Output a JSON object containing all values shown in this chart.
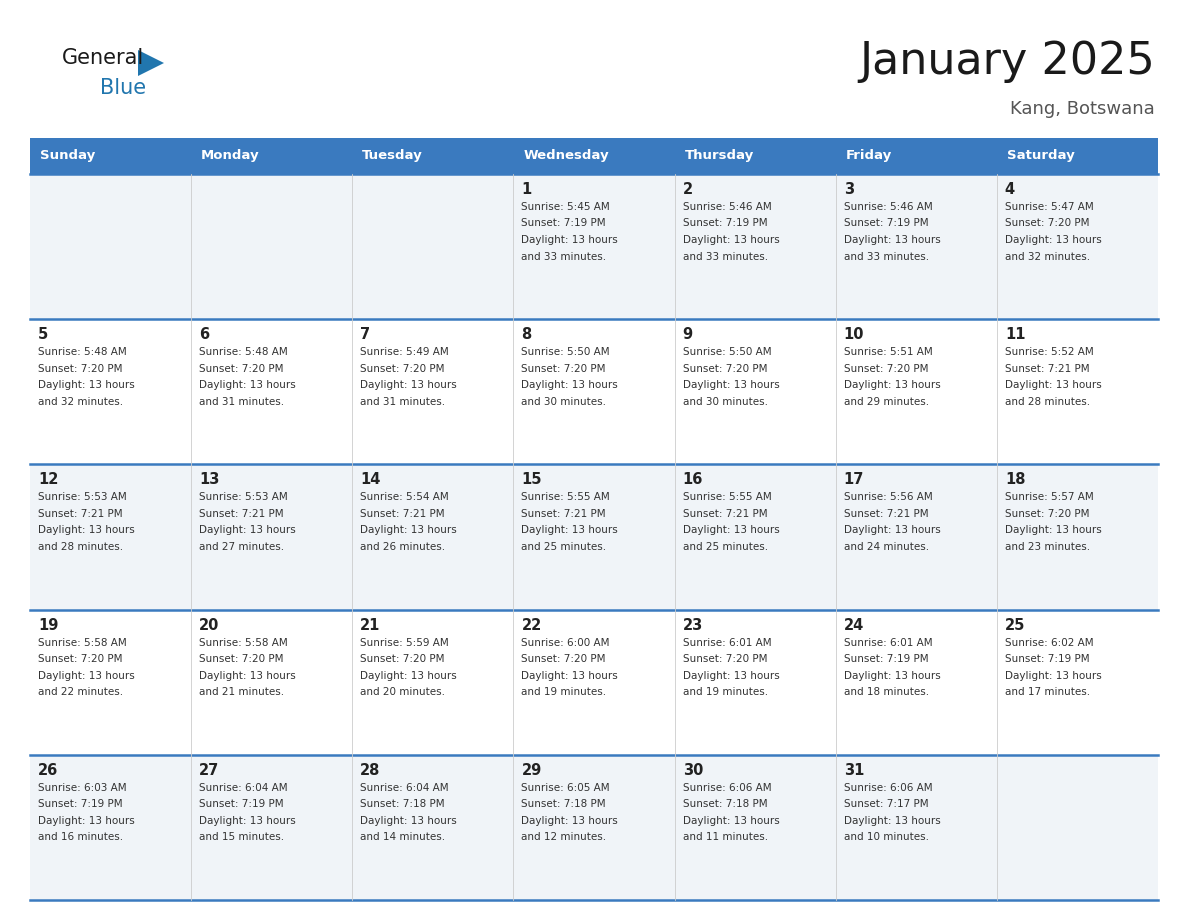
{
  "title": "January 2025",
  "location": "Kang, Botswana",
  "days_of_week": [
    "Sunday",
    "Monday",
    "Tuesday",
    "Wednesday",
    "Thursday",
    "Friday",
    "Saturday"
  ],
  "header_bg": "#3a7abf",
  "header_text": "#ffffff",
  "row_bg_light": "#f0f4f8",
  "row_bg_white": "#ffffff",
  "cell_border_color": "#3a7abf",
  "day_number_color": "#222222",
  "info_color": "#333333",
  "title_color": "#1a1a1a",
  "location_color": "#555555",
  "logo_general_color": "#1a1a1a",
  "logo_blue_color": "#2176ae",
  "logo_triangle_color": "#2176ae",
  "calendar_data": [
    [
      null,
      null,
      null,
      {
        "day": 1,
        "sunrise": "5:45 AM",
        "sunset": "7:19 PM",
        "daylight": "13 hours and 33 minutes"
      },
      {
        "day": 2,
        "sunrise": "5:46 AM",
        "sunset": "7:19 PM",
        "daylight": "13 hours and 33 minutes"
      },
      {
        "day": 3,
        "sunrise": "5:46 AM",
        "sunset": "7:19 PM",
        "daylight": "13 hours and 33 minutes"
      },
      {
        "day": 4,
        "sunrise": "5:47 AM",
        "sunset": "7:20 PM",
        "daylight": "13 hours and 32 minutes"
      }
    ],
    [
      {
        "day": 5,
        "sunrise": "5:48 AM",
        "sunset": "7:20 PM",
        "daylight": "13 hours and 32 minutes"
      },
      {
        "day": 6,
        "sunrise": "5:48 AM",
        "sunset": "7:20 PM",
        "daylight": "13 hours and 31 minutes"
      },
      {
        "day": 7,
        "sunrise": "5:49 AM",
        "sunset": "7:20 PM",
        "daylight": "13 hours and 31 minutes"
      },
      {
        "day": 8,
        "sunrise": "5:50 AM",
        "sunset": "7:20 PM",
        "daylight": "13 hours and 30 minutes"
      },
      {
        "day": 9,
        "sunrise": "5:50 AM",
        "sunset": "7:20 PM",
        "daylight": "13 hours and 30 minutes"
      },
      {
        "day": 10,
        "sunrise": "5:51 AM",
        "sunset": "7:20 PM",
        "daylight": "13 hours and 29 minutes"
      },
      {
        "day": 11,
        "sunrise": "5:52 AM",
        "sunset": "7:21 PM",
        "daylight": "13 hours and 28 minutes"
      }
    ],
    [
      {
        "day": 12,
        "sunrise": "5:53 AM",
        "sunset": "7:21 PM",
        "daylight": "13 hours and 28 minutes"
      },
      {
        "day": 13,
        "sunrise": "5:53 AM",
        "sunset": "7:21 PM",
        "daylight": "13 hours and 27 minutes"
      },
      {
        "day": 14,
        "sunrise": "5:54 AM",
        "sunset": "7:21 PM",
        "daylight": "13 hours and 26 minutes"
      },
      {
        "day": 15,
        "sunrise": "5:55 AM",
        "sunset": "7:21 PM",
        "daylight": "13 hours and 25 minutes"
      },
      {
        "day": 16,
        "sunrise": "5:55 AM",
        "sunset": "7:21 PM",
        "daylight": "13 hours and 25 minutes"
      },
      {
        "day": 17,
        "sunrise": "5:56 AM",
        "sunset": "7:21 PM",
        "daylight": "13 hours and 24 minutes"
      },
      {
        "day": 18,
        "sunrise": "5:57 AM",
        "sunset": "7:20 PM",
        "daylight": "13 hours and 23 minutes"
      }
    ],
    [
      {
        "day": 19,
        "sunrise": "5:58 AM",
        "sunset": "7:20 PM",
        "daylight": "13 hours and 22 minutes"
      },
      {
        "day": 20,
        "sunrise": "5:58 AM",
        "sunset": "7:20 PM",
        "daylight": "13 hours and 21 minutes"
      },
      {
        "day": 21,
        "sunrise": "5:59 AM",
        "sunset": "7:20 PM",
        "daylight": "13 hours and 20 minutes"
      },
      {
        "day": 22,
        "sunrise": "6:00 AM",
        "sunset": "7:20 PM",
        "daylight": "13 hours and 19 minutes"
      },
      {
        "day": 23,
        "sunrise": "6:01 AM",
        "sunset": "7:20 PM",
        "daylight": "13 hours and 19 minutes"
      },
      {
        "day": 24,
        "sunrise": "6:01 AM",
        "sunset": "7:19 PM",
        "daylight": "13 hours and 18 minutes"
      },
      {
        "day": 25,
        "sunrise": "6:02 AM",
        "sunset": "7:19 PM",
        "daylight": "13 hours and 17 minutes"
      }
    ],
    [
      {
        "day": 26,
        "sunrise": "6:03 AM",
        "sunset": "7:19 PM",
        "daylight": "13 hours and 16 minutes"
      },
      {
        "day": 27,
        "sunrise": "6:04 AM",
        "sunset": "7:19 PM",
        "daylight": "13 hours and 15 minutes"
      },
      {
        "day": 28,
        "sunrise": "6:04 AM",
        "sunset": "7:18 PM",
        "daylight": "13 hours and 14 minutes"
      },
      {
        "day": 29,
        "sunrise": "6:05 AM",
        "sunset": "7:18 PM",
        "daylight": "13 hours and 12 minutes"
      },
      {
        "day": 30,
        "sunrise": "6:06 AM",
        "sunset": "7:18 PM",
        "daylight": "13 hours and 11 minutes"
      },
      {
        "day": 31,
        "sunrise": "6:06 AM",
        "sunset": "7:17 PM",
        "daylight": "13 hours and 10 minutes"
      },
      null
    ]
  ]
}
